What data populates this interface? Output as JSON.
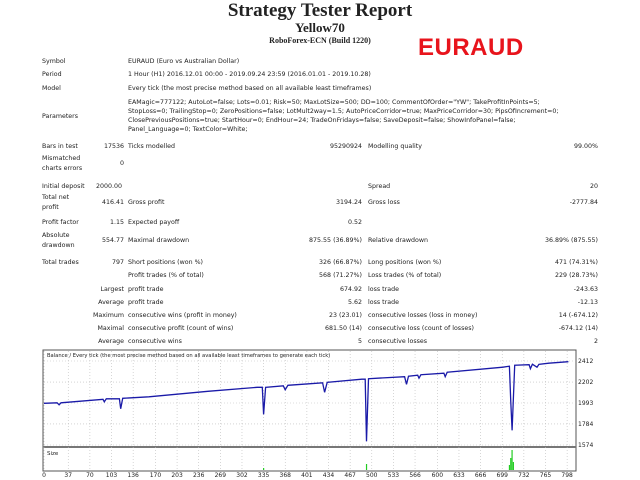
{
  "header": {
    "title": "Strategy Tester Report",
    "expert": "Yellow70",
    "server": "RoboForex-ECN (Build 1220)",
    "symbol_banner": "EURAUD",
    "banner_color": "#e8141c"
  },
  "info": {
    "symbol_label": "Symbol",
    "symbol_value": "EURAUD (Euro vs Australian Dollar)",
    "period_label": "Period",
    "period_value": "1 Hour (H1) 2016.12.01 00:00 - 2019.09.24 23:59 (2016.01.01 - 2019.10.28)",
    "model_label": "Model",
    "model_value": "Every tick (the most precise method based on all available least timeframes)",
    "parameters_label": "Parameters",
    "parameters_lines": [
      "EAMagic=777122; AutoLot=false; Lots=0.01; Risk=50; MaxLotSize=500; DD=100; CommentOfOrder=\"YW\"; TakeProfitInPoints=5;",
      "StopLoss=0; TrailingStop=0; ZeroPositions=false; LotMult2way=1.5; AutoPriceCorridor=true; MaxPriceCorridor=30; PipsOfIncrement=0;",
      "ClosePreviousPositions=true; StartHour=0; EndHour=24; TradeOnFridays=false; SaveDeposit=false; ShowInfoPanel=false;",
      "Panel_Language=0; TextColor=White;"
    ],
    "bars_label": "Bars in test",
    "bars_value": "17536",
    "ticks_label": "Ticks modelled",
    "ticks_value": "95290924",
    "quality_label": "Modelling quality",
    "quality_value": "99.00%",
    "mismatch_label_1": "Mismatched",
    "mismatch_label_2": "charts errors",
    "mismatch_value": "0"
  },
  "results": {
    "initial_deposit_label": "Initial deposit",
    "initial_deposit": "2000.00",
    "spread_label": "Spread",
    "spread": "20",
    "net_profit_label_1": "Total net",
    "net_profit_label_2": "profit",
    "net_profit": "416.41",
    "gross_profit_label": "Gross profit",
    "gross_profit": "3194.24",
    "gross_loss_label": "Gross loss",
    "gross_loss": "-2777.84",
    "profit_factor_label": "Profit factor",
    "profit_factor": "1.15",
    "expected_payoff_label": "Expected payoff",
    "expected_payoff": "0.52",
    "abs_dd_label_1": "Absolute",
    "abs_dd_label_2": "drawdown",
    "abs_dd": "554.77",
    "max_dd_label": "Maximal drawdown",
    "max_dd": "875.55 (36.89%)",
    "rel_dd_label": "Relative drawdown",
    "rel_dd": "36.89% (875.55)",
    "total_trades_label": "Total trades",
    "total_trades": "797",
    "short_label": "Short positions (won %)",
    "short": "326 (66.87%)",
    "long_label": "Long positions (won %)",
    "long": "471 (74.31%)",
    "profit_trades_label": "Profit trades (% of total)",
    "profit_trades": "568 (71.27%)",
    "loss_trades_label": "Loss trades (% of total)",
    "loss_trades": "229 (28.73%)",
    "largest_label": "Largest",
    "largest_profit_label": "profit trade",
    "largest_profit": "674.92",
    "largest_loss_label": "loss trade",
    "largest_loss": "-243.63",
    "average_label": "Average",
    "avg_profit_label": "profit trade",
    "avg_profit": "5.62",
    "avg_loss_label": "loss trade",
    "avg_loss": "-12.13",
    "maximum_label": "Maximum",
    "max_wins_label": "consecutive wins (profit in money)",
    "max_wins": "23 (23.01)",
    "max_losses_label": "consecutive losses (loss in money)",
    "max_losses": "14 (-674.12)",
    "maximal_label": "Maximal",
    "maximal_profit_label": "consecutive profit (count of wins)",
    "maximal_profit": "681.50 (14)",
    "maximal_loss_label": "consecutive loss (count of losses)",
    "maximal_loss": "-674.12 (14)",
    "average2_label": "Average",
    "avg_wins_label": "consecutive wins",
    "avg_wins": "5",
    "avg_losses_label": "consecutive losses",
    "avg_losses": "2"
  },
  "chart_data": {
    "type": "line",
    "title": "Balance / Every tick (the most precise method based on all available least timeframes to generate each tick)",
    "size_label": "Size",
    "xlim": [
      0,
      810
    ],
    "ylim": [
      1574,
      2450
    ],
    "grid": true,
    "line_color": "#1a1aa8",
    "size_color": "#22cc22",
    "y_ticks": [
      "2412",
      "2202",
      "1993",
      "1784",
      "1574"
    ],
    "x_ticks": [
      "0",
      "37",
      "70",
      "103",
      "136",
      "170",
      "203",
      "236",
      "269",
      "302",
      "335",
      "368",
      "401",
      "434",
      "467",
      "500",
      "533",
      "566",
      "600",
      "633",
      "666",
      "699",
      "732",
      "765",
      "798"
    ],
    "balance": [
      [
        0,
        1990
      ],
      [
        20,
        1995
      ],
      [
        23,
        1975
      ],
      [
        26,
        1995
      ],
      [
        90,
        2030
      ],
      [
        92,
        2005
      ],
      [
        95,
        2035
      ],
      [
        115,
        2035
      ],
      [
        117,
        1935
      ],
      [
        120,
        2040
      ],
      [
        160,
        2055
      ],
      [
        250,
        2110
      ],
      [
        325,
        2150
      ],
      [
        333,
        2150
      ],
      [
        335,
        1880
      ],
      [
        338,
        2150
      ],
      [
        365,
        2165
      ],
      [
        368,
        2125
      ],
      [
        372,
        2170
      ],
      [
        425,
        2195
      ],
      [
        428,
        2100
      ],
      [
        432,
        2200
      ],
      [
        485,
        2230
      ],
      [
        490,
        2230
      ],
      [
        492,
        1610
      ],
      [
        495,
        2235
      ],
      [
        550,
        2255
      ],
      [
        553,
        2180
      ],
      [
        556,
        2260
      ],
      [
        570,
        2270
      ],
      [
        572,
        2240
      ],
      [
        575,
        2275
      ],
      [
        610,
        2290
      ],
      [
        612,
        2255
      ],
      [
        615,
        2300
      ],
      [
        700,
        2350
      ],
      [
        710,
        2360
      ],
      [
        712,
        2000
      ],
      [
        714,
        1720
      ],
      [
        718,
        2370
      ],
      [
        740,
        2375
      ],
      [
        742,
        2335
      ],
      [
        745,
        2380
      ],
      [
        752,
        2350
      ],
      [
        755,
        2378
      ],
      [
        770,
        2390
      ],
      [
        800,
        2405
      ]
    ],
    "size": [
      [
        335,
        0.1
      ],
      [
        492,
        0.3
      ],
      [
        710,
        0.25
      ],
      [
        712,
        0.6
      ],
      [
        714,
        1.0
      ],
      [
        716,
        0.4
      ]
    ]
  }
}
